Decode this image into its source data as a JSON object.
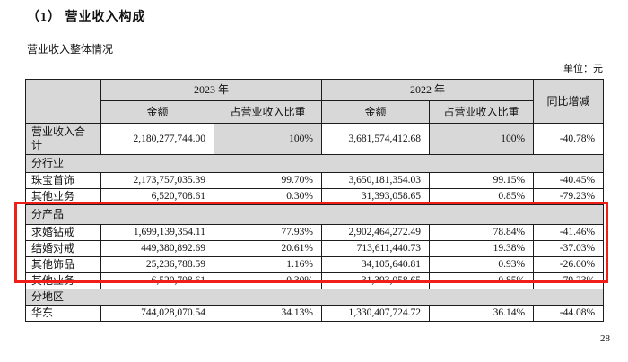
{
  "page": {
    "title": "（1） 营业收入构成",
    "subtitle": "营业收入整体情况",
    "unit_note": "单位：元",
    "page_number": "28"
  },
  "table": {
    "header": {
      "year_2023": "2023 年",
      "year_2022": "2022 年",
      "yoy": "同比增减",
      "amount": "金额",
      "ratio": "占营业收入比重"
    },
    "rows": [
      {
        "type": "data",
        "label": "营业收入合计",
        "a2023": "2,180,277,744.00",
        "r2023": "100%",
        "a2022": "3,681,574,412.68",
        "r2022": "100%",
        "yoy": "-40.78%",
        "shaded": true
      },
      {
        "type": "section",
        "label": "分行业"
      },
      {
        "type": "data",
        "label": "珠宝首饰",
        "a2023": "2,173,757,035.39",
        "r2023": "99.70%",
        "a2022": "3,650,181,354.03",
        "r2022": "99.15%",
        "yoy": "-40.45%"
      },
      {
        "type": "data",
        "label": "其他业务",
        "a2023": "6,520,708.61",
        "r2023": "0.30%",
        "a2022": "31,393,058.65",
        "r2022": "0.85%",
        "yoy": "-79.23%"
      },
      {
        "type": "section",
        "label": "分产品"
      },
      {
        "type": "data",
        "label": "求婚钻戒",
        "a2023": "1,699,139,354.11",
        "r2023": "77.93%",
        "a2022": "2,902,464,272.49",
        "r2022": "78.84%",
        "yoy": "-41.46%"
      },
      {
        "type": "data",
        "label": "结婚对戒",
        "a2023": "449,380,892.69",
        "r2023": "20.61%",
        "a2022": "713,611,440.73",
        "r2022": "19.38%",
        "yoy": "-37.03%"
      },
      {
        "type": "data",
        "label": "其他饰品",
        "a2023": "25,236,788.59",
        "r2023": "1.16%",
        "a2022": "34,105,640.81",
        "r2022": "0.93%",
        "yoy": "-26.00%"
      },
      {
        "type": "data",
        "label": "其他业务",
        "a2023": "6,520,708.61",
        "r2023": "0.30%",
        "a2022": "31,393,058.65",
        "r2022": "0.85%",
        "yoy": "-79.23%"
      },
      {
        "type": "section",
        "label": "分地区"
      },
      {
        "type": "data",
        "label": "华东",
        "a2023": "744,028,070.54",
        "r2023": "34.13%",
        "a2022": "1,330,407,724.72",
        "r2022": "36.14%",
        "yoy": "-44.08%"
      }
    ],
    "highlight": {
      "section": "分产品",
      "color": "#f01e19"
    },
    "colors": {
      "header_fill": "#d8d8d8",
      "border": "#1c1c1c"
    }
  }
}
